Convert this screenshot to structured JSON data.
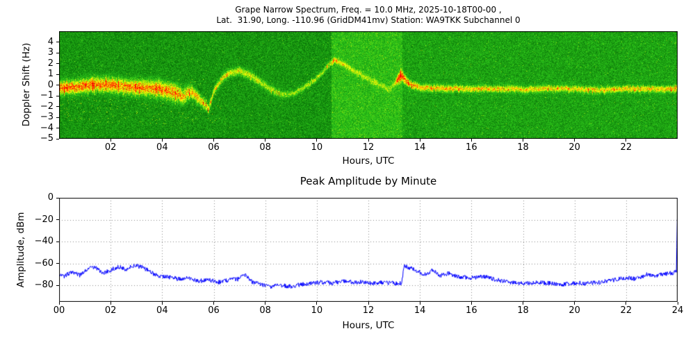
{
  "figure": {
    "background": "#ffffff"
  },
  "chart_data": [
    {
      "type": "heatmap",
      "title": "Grape Narrow Spectrum, Freq. = 10.0 MHz, 2025-10-18T00-00 ,",
      "subtitle": "Lat.  31.90, Long. -110.96 (GridDM41mv) Station: WA9TKK Subchannel 0",
      "xlabel": "Hours, UTC",
      "ylabel": "Doppler Shift (Hz)",
      "xlim": [
        0,
        24
      ],
      "ylim": [
        -5,
        5
      ],
      "xtick_values": [
        2,
        4,
        6,
        8,
        10,
        12,
        14,
        16,
        18,
        20,
        22
      ],
      "xtick_labels": [
        "02",
        "04",
        "06",
        "08",
        "10",
        "12",
        "14",
        "16",
        "18",
        "20",
        "22"
      ],
      "ytick_values": [
        4,
        3,
        2,
        1,
        0,
        -1,
        -2,
        -3,
        -4,
        -5
      ],
      "ytick_labels": [
        "4",
        "3",
        "2",
        "1",
        "0",
        "−1",
        "−2",
        "−3",
        "−4",
        "−5"
      ],
      "colormap": {
        "background_green": "#12a012",
        "bright_green": "#30cc30",
        "signal_yellow": "#ffff00",
        "signal_red": "#ff2000"
      },
      "background_regions": [
        [
          0,
          10.55,
          0.0
        ],
        [
          10.55,
          13.3,
          0.17
        ],
        [
          13.3,
          24.01,
          0.06
        ]
      ],
      "doppler_trace": [
        [
          0,
          -0.25
        ],
        [
          0.8,
          -0.1
        ],
        [
          1.5,
          0.1
        ],
        [
          2,
          0.0
        ],
        [
          2.5,
          -0.1
        ],
        [
          3,
          -0.2
        ],
        [
          3.8,
          -0.3
        ],
        [
          4.4,
          -0.6
        ],
        [
          4.8,
          -1.0
        ],
        [
          5.1,
          -0.6
        ],
        [
          5.4,
          -1.2
        ],
        [
          5.8,
          -2.2
        ],
        [
          6.0,
          -0.5
        ],
        [
          6.3,
          0.6
        ],
        [
          6.6,
          1.1
        ],
        [
          7.0,
          1.35
        ],
        [
          7.4,
          0.9
        ],
        [
          7.8,
          0.3
        ],
        [
          8.2,
          -0.4
        ],
        [
          8.7,
          -0.9
        ],
        [
          9.1,
          -0.7
        ],
        [
          9.5,
          -0.2
        ],
        [
          9.9,
          0.5
        ],
        [
          10.2,
          1.2
        ],
        [
          10.5,
          2.0
        ],
        [
          10.7,
          2.4
        ],
        [
          11.0,
          2.0
        ],
        [
          11.4,
          1.4
        ],
        [
          11.9,
          0.7
        ],
        [
          12.4,
          0.1
        ],
        [
          12.8,
          -0.4
        ],
        [
          13.1,
          0.4
        ],
        [
          13.25,
          1.0
        ],
        [
          13.45,
          0.4
        ],
        [
          13.7,
          0.0
        ],
        [
          14,
          -0.2
        ],
        [
          15,
          -0.3
        ],
        [
          16,
          -0.35
        ],
        [
          17,
          -0.3
        ],
        [
          18,
          -0.4
        ],
        [
          19,
          -0.3
        ],
        [
          20,
          -0.35
        ],
        [
          21,
          -0.45
        ],
        [
          22,
          -0.3
        ],
        [
          23,
          -0.35
        ],
        [
          24,
          -0.3
        ]
      ],
      "trace_intensity": [
        [
          0,
          1.0
        ],
        [
          4,
          0.95
        ],
        [
          5,
          0.75
        ],
        [
          6,
          0.6
        ],
        [
          6.5,
          0.65
        ],
        [
          8,
          0.5
        ],
        [
          8.8,
          0.4
        ],
        [
          9.5,
          0.45
        ],
        [
          10.5,
          0.55
        ],
        [
          11.5,
          0.4
        ],
        [
          12.5,
          0.3
        ],
        [
          13.0,
          0.25
        ],
        [
          13.15,
          1.25
        ],
        [
          13.35,
          1.1
        ],
        [
          13.6,
          0.8
        ],
        [
          14,
          0.75
        ],
        [
          16,
          0.7
        ],
        [
          18,
          0.65
        ],
        [
          20,
          0.65
        ],
        [
          22,
          0.7
        ],
        [
          24,
          0.75
        ]
      ],
      "trace_width": [
        [
          0,
          0.55
        ],
        [
          3,
          0.6
        ],
        [
          4.5,
          0.7
        ],
        [
          6,
          0.3
        ],
        [
          8,
          0.35
        ],
        [
          9,
          0.25
        ],
        [
          11,
          0.22
        ],
        [
          13,
          0.25
        ],
        [
          13.25,
          0.45
        ],
        [
          13.6,
          0.28
        ],
        [
          16,
          0.25
        ],
        [
          24,
          0.25
        ]
      ]
    },
    {
      "type": "line",
      "title": "Peak Amplitude by Minute",
      "xlabel": "Hours, UTC",
      "ylabel": "Amplitude, dBm",
      "xlim": [
        0,
        24
      ],
      "ylim": [
        -95,
        0
      ],
      "xtick_values": [
        0,
        2,
        4,
        6,
        8,
        10,
        12,
        14,
        16,
        18,
        20,
        22,
        24
      ],
      "xtick_labels": [
        "00",
        "02",
        "04",
        "06",
        "08",
        "10",
        "12",
        "14",
        "16",
        "18",
        "20",
        "22",
        "24"
      ],
      "ytick_values": [
        0,
        -20,
        -40,
        -60,
        -80
      ],
      "ytick_labels": [
        "0",
        "−20",
        "−40",
        "−60",
        "−80"
      ],
      "grid": "dotted",
      "line_color": "#0000ff",
      "series": [
        {
          "name": "peak_amplitude_dBm",
          "keypoints": [
            [
              0,
              -69
            ],
            [
              0.2,
              -72
            ],
            [
              0.5,
              -67
            ],
            [
              0.8,
              -71
            ],
            [
              1.1,
              -65
            ],
            [
              1.4,
              -63
            ],
            [
              1.7,
              -69
            ],
            [
              2.0,
              -66
            ],
            [
              2.3,
              -63
            ],
            [
              2.6,
              -65
            ],
            [
              2.9,
              -62
            ],
            [
              3.2,
              -63
            ],
            [
              3.5,
              -67
            ],
            [
              3.8,
              -71
            ],
            [
              4.2,
              -72
            ],
            [
              4.6,
              -74
            ],
            [
              5.0,
              -73
            ],
            [
              5.4,
              -76
            ],
            [
              5.8,
              -75
            ],
            [
              6.2,
              -77
            ],
            [
              6.6,
              -75
            ],
            [
              7.0,
              -74
            ],
            [
              7.2,
              -70
            ],
            [
              7.5,
              -77
            ],
            [
              7.8,
              -79
            ],
            [
              8.2,
              -81
            ],
            [
              8.6,
              -80
            ],
            [
              9.0,
              -81
            ],
            [
              9.4,
              -79
            ],
            [
              9.8,
              -78
            ],
            [
              10.2,
              -77
            ],
            [
              10.6,
              -78
            ],
            [
              11.0,
              -76
            ],
            [
              11.4,
              -77
            ],
            [
              11.8,
              -77
            ],
            [
              12.2,
              -78
            ],
            [
              12.6,
              -77
            ],
            [
              13.0,
              -78
            ],
            [
              13.3,
              -78
            ],
            [
              13.38,
              -62
            ],
            [
              13.6,
              -64
            ],
            [
              13.9,
              -67
            ],
            [
              14.2,
              -70
            ],
            [
              14.5,
              -66
            ],
            [
              14.8,
              -71
            ],
            [
              15.1,
              -69
            ],
            [
              15.5,
              -72
            ],
            [
              16.0,
              -73
            ],
            [
              16.5,
              -72
            ],
            [
              17.0,
              -75
            ],
            [
              17.5,
              -77
            ],
            [
              18.0,
              -78
            ],
            [
              18.5,
              -77
            ],
            [
              19.0,
              -78
            ],
            [
              19.5,
              -79
            ],
            [
              20.0,
              -78
            ],
            [
              20.5,
              -78
            ],
            [
              21.0,
              -77
            ],
            [
              21.5,
              -75
            ],
            [
              22.0,
              -73
            ],
            [
              22.4,
              -74
            ],
            [
              22.8,
              -70
            ],
            [
              23.2,
              -71
            ],
            [
              23.6,
              -69
            ],
            [
              23.95,
              -68
            ],
            [
              24,
              0
            ]
          ]
        }
      ]
    }
  ]
}
